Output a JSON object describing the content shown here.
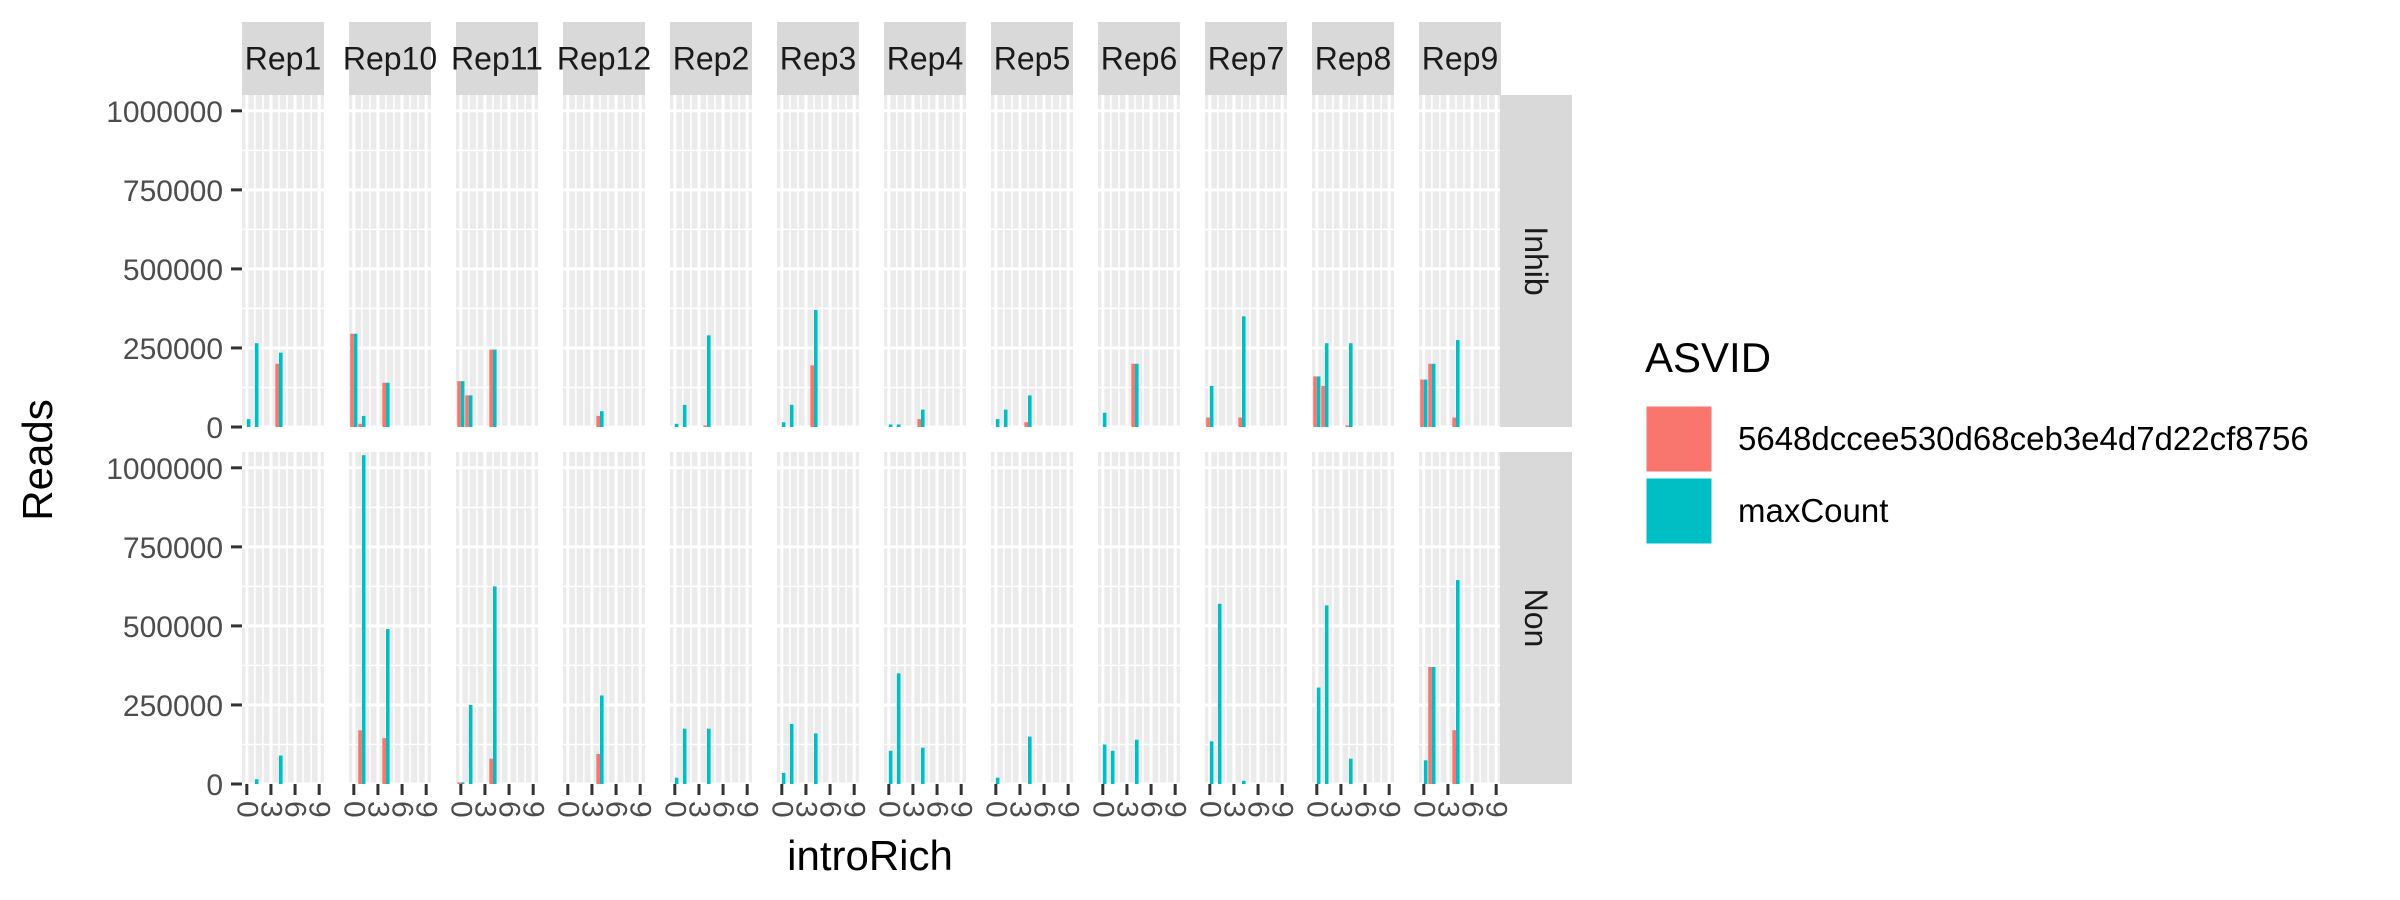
{
  "chart_data": {
    "type": "bar",
    "facet_columns": [
      "Rep1",
      "Rep10",
      "Rep11",
      "Rep12",
      "Rep2",
      "Rep3",
      "Rep4",
      "Rep5",
      "Rep6",
      "Rep7",
      "Rep8",
      "Rep9"
    ],
    "facet_rows": [
      "Inhib",
      "Non"
    ],
    "xlabel": "introRich",
    "ylabel": "Reads",
    "x_tick_labels": [
      "0",
      "3",
      "6",
      "9"
    ],
    "ylim": [
      0,
      1050000
    ],
    "y_ticks": [
      0,
      250000,
      500000,
      750000,
      1000000
    ],
    "y_tick_labels": [
      "0",
      "250000",
      "500000",
      "750000",
      "1000000"
    ],
    "legend_title": "ASVID",
    "legend_position": "right",
    "grid": true,
    "series": [
      {
        "name": "5648dccee530d68ceb3e4d7d22cf8756",
        "color": "#F8766D"
      },
      {
        "name": "maxCount",
        "color": "#00BFC4"
      }
    ],
    "panels": [
      {
        "row": "Inhib",
        "col": "Rep1",
        "bars": [
          {
            "x": 0,
            "v": [
              null,
              25000
            ]
          },
          {
            "x": 1,
            "v": [
              null,
              265000
            ]
          },
          {
            "x": 4,
            "v": [
              200000,
              235000
            ]
          }
        ]
      },
      {
        "row": "Inhib",
        "col": "Rep10",
        "bars": [
          {
            "x": 0,
            "v": [
              295000,
              295000
            ]
          },
          {
            "x": 1,
            "v": [
              10000,
              35000
            ]
          },
          {
            "x": 4,
            "v": [
              140000,
              140000
            ]
          }
        ]
      },
      {
        "row": "Inhib",
        "col": "Rep11",
        "bars": [
          {
            "x": 0,
            "v": [
              145000,
              145000
            ]
          },
          {
            "x": 1,
            "v": [
              100000,
              100000
            ]
          },
          {
            "x": 4,
            "v": [
              245000,
              245000
            ]
          }
        ]
      },
      {
        "row": "Inhib",
        "col": "Rep12",
        "bars": [
          {
            "x": 4,
            "v": [
              35000,
              50000
            ]
          }
        ]
      },
      {
        "row": "Inhib",
        "col": "Rep2",
        "bars": [
          {
            "x": 0,
            "v": [
              null,
              10000
            ]
          },
          {
            "x": 1,
            "v": [
              null,
              70000
            ]
          },
          {
            "x": 4,
            "v": [
              5000,
              290000
            ]
          }
        ]
      },
      {
        "row": "Inhib",
        "col": "Rep3",
        "bars": [
          {
            "x": 0,
            "v": [
              null,
              15000
            ]
          },
          {
            "x": 1,
            "v": [
              null,
              70000
            ]
          },
          {
            "x": 4,
            "v": [
              195000,
              370000
            ]
          }
        ]
      },
      {
        "row": "Inhib",
        "col": "Rep4",
        "bars": [
          {
            "x": 0,
            "v": [
              null,
              8000
            ]
          },
          {
            "x": 1,
            "v": [
              null,
              8000
            ]
          },
          {
            "x": 4,
            "v": [
              25000,
              55000
            ]
          }
        ]
      },
      {
        "row": "Inhib",
        "col": "Rep5",
        "bars": [
          {
            "x": 0,
            "v": [
              null,
              25000
            ]
          },
          {
            "x": 1,
            "v": [
              null,
              55000
            ]
          },
          {
            "x": 4,
            "v": [
              15000,
              100000
            ]
          }
        ]
      },
      {
        "row": "Inhib",
        "col": "Rep6",
        "bars": [
          {
            "x": 0,
            "v": [
              null,
              45000
            ]
          },
          {
            "x": 4,
            "v": [
              200000,
              200000
            ]
          }
        ]
      },
      {
        "row": "Inhib",
        "col": "Rep7",
        "bars": [
          {
            "x": 0,
            "v": [
              30000,
              130000
            ]
          },
          {
            "x": 4,
            "v": [
              30000,
              350000
            ]
          }
        ]
      },
      {
        "row": "Inhib",
        "col": "Rep8",
        "bars": [
          {
            "x": 0,
            "v": [
              160000,
              160000
            ]
          },
          {
            "x": 1,
            "v": [
              130000,
              265000
            ]
          },
          {
            "x": 4,
            "v": [
              5000,
              265000
            ]
          }
        ]
      },
      {
        "row": "Inhib",
        "col": "Rep9",
        "bars": [
          {
            "x": 0,
            "v": [
              150000,
              150000
            ]
          },
          {
            "x": 1,
            "v": [
              200000,
              200000
            ]
          },
          {
            "x": 4,
            "v": [
              30000,
              275000
            ]
          }
        ]
      },
      {
        "row": "Non",
        "col": "Rep1",
        "bars": [
          {
            "x": 1,
            "v": [
              null,
              15000
            ]
          },
          {
            "x": 4,
            "v": [
              null,
              90000
            ]
          }
        ]
      },
      {
        "row": "Non",
        "col": "Rep10",
        "bars": [
          {
            "x": 1,
            "v": [
              170000,
              1040000
            ]
          },
          {
            "x": 4,
            "v": [
              145000,
              490000
            ]
          }
        ]
      },
      {
        "row": "Non",
        "col": "Rep11",
        "bars": [
          {
            "x": 0,
            "v": [
              5000,
              5000
            ]
          },
          {
            "x": 1,
            "v": [
              null,
              250000
            ]
          },
          {
            "x": 4,
            "v": [
              80000,
              625000
            ]
          }
        ]
      },
      {
        "row": "Non",
        "col": "Rep12",
        "bars": [
          {
            "x": 4,
            "v": [
              95000,
              280000
            ]
          }
        ]
      },
      {
        "row": "Non",
        "col": "Rep2",
        "bars": [
          {
            "x": 0,
            "v": [
              null,
              20000
            ]
          },
          {
            "x": 1,
            "v": [
              null,
              175000
            ]
          },
          {
            "x": 4,
            "v": [
              null,
              175000
            ]
          }
        ]
      },
      {
        "row": "Non",
        "col": "Rep3",
        "bars": [
          {
            "x": 0,
            "v": [
              null,
              35000
            ]
          },
          {
            "x": 1,
            "v": [
              null,
              190000
            ]
          },
          {
            "x": 4,
            "v": [
              null,
              160000
            ]
          }
        ]
      },
      {
        "row": "Non",
        "col": "Rep4",
        "bars": [
          {
            "x": 0,
            "v": [
              null,
              105000
            ]
          },
          {
            "x": 1,
            "v": [
              null,
              350000
            ]
          },
          {
            "x": 4,
            "v": [
              null,
              115000
            ]
          }
        ]
      },
      {
        "row": "Non",
        "col": "Rep5",
        "bars": [
          {
            "x": 0,
            "v": [
              null,
              20000
            ]
          },
          {
            "x": 4,
            "v": [
              null,
              150000
            ]
          }
        ]
      },
      {
        "row": "Non",
        "col": "Rep6",
        "bars": [
          {
            "x": 0,
            "v": [
              null,
              125000
            ]
          },
          {
            "x": 1,
            "v": [
              null,
              105000
            ]
          },
          {
            "x": 4,
            "v": [
              null,
              140000
            ]
          }
        ]
      },
      {
        "row": "Non",
        "col": "Rep7",
        "bars": [
          {
            "x": 0,
            "v": [
              null,
              135000
            ]
          },
          {
            "x": 1,
            "v": [
              null,
              570000
            ]
          },
          {
            "x": 4,
            "v": [
              null,
              10000
            ]
          }
        ]
      },
      {
        "row": "Non",
        "col": "Rep8",
        "bars": [
          {
            "x": 0,
            "v": [
              null,
              305000
            ]
          },
          {
            "x": 1,
            "v": [
              null,
              565000
            ]
          },
          {
            "x": 4,
            "v": [
              null,
              80000
            ]
          }
        ]
      },
      {
        "row": "Non",
        "col": "Rep9",
        "bars": [
          {
            "x": 0,
            "v": [
              null,
              75000
            ]
          },
          {
            "x": 1,
            "v": [
              370000,
              370000
            ]
          },
          {
            "x": 4,
            "v": [
              170000,
              645000
            ]
          }
        ]
      }
    ]
  }
}
